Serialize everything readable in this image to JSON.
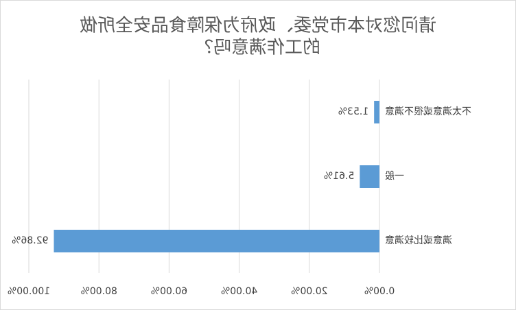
{
  "chart_data": {
    "type": "hbar",
    "title": "请问您对本市党委、政府为保障食品安全所做的工作满意吗？",
    "title_lines": [
      "请问您对本市党委、政府为保障食品安全所做",
      "的工作满意吗？"
    ],
    "categories": [
      "不太满意或很不满意",
      "一般",
      "满意或比较满意"
    ],
    "values": [
      1.53,
      5.61,
      92.86
    ],
    "value_labels": [
      "1.53%",
      "5.61%",
      "92.86%"
    ],
    "color": "#5b9bd5",
    "xlim": [
      0,
      100
    ],
    "xticks": [
      {
        "value": 0,
        "label": "0.00%"
      },
      {
        "value": 20,
        "label": "20.00%"
      },
      {
        "value": 40,
        "label": "40.00%"
      },
      {
        "value": 60,
        "label": "60.00%"
      },
      {
        "value": 80,
        "label": "80.00%"
      },
      {
        "value": 100,
        "label": "100.00%"
      }
    ],
    "grid": true,
    "mirrored": true
  }
}
